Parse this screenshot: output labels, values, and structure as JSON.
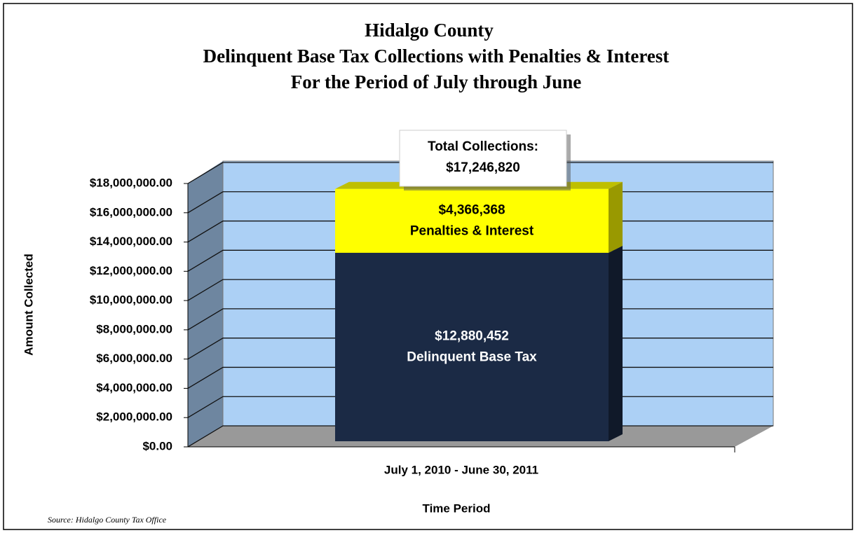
{
  "chart_data": {
    "type": "bar",
    "stacked": true,
    "title": [
      "Hidalgo County",
      "Delinquent Base Tax Collections with Penalties & Interest",
      "For the Period of July through June"
    ],
    "categories": [
      "July 1, 2010 - June 30, 2011"
    ],
    "series": [
      {
        "name": "Delinquent Base Tax",
        "color": "#1b2a45",
        "values": [
          12880452
        ],
        "value_labels": [
          "$12,880,452"
        ]
      },
      {
        "name": "Penalties & Interest",
        "color": "#ffff00",
        "values": [
          4366368
        ],
        "value_labels": [
          "$4,366,368"
        ]
      }
    ],
    "annotation": [
      "Total Collections:",
      "$17,246,820"
    ],
    "ylabel": "Amount Collected",
    "xlabel": "Time Period",
    "source": "Source: Hidalgo County Tax Office",
    "ylim": [
      0,
      18000000
    ],
    "yticks": [
      {
        "value": 0,
        "label": "$0.00"
      },
      {
        "value": 2000000,
        "label": "$2,000,000.00"
      },
      {
        "value": 4000000,
        "label": "$4,000,000.00"
      },
      {
        "value": 6000000,
        "label": "$6,000,000.00"
      },
      {
        "value": 8000000,
        "label": "$8,000,000.00"
      },
      {
        "value": 10000000,
        "label": "$10,000,000.00"
      },
      {
        "value": 12000000,
        "label": "$12,000,000.00"
      },
      {
        "value": 14000000,
        "label": "$14,000,000.00"
      },
      {
        "value": 16000000,
        "label": "$16,000,000.00"
      },
      {
        "value": 18000000,
        "label": "$18,000,000.00"
      }
    ],
    "grid": true
  }
}
